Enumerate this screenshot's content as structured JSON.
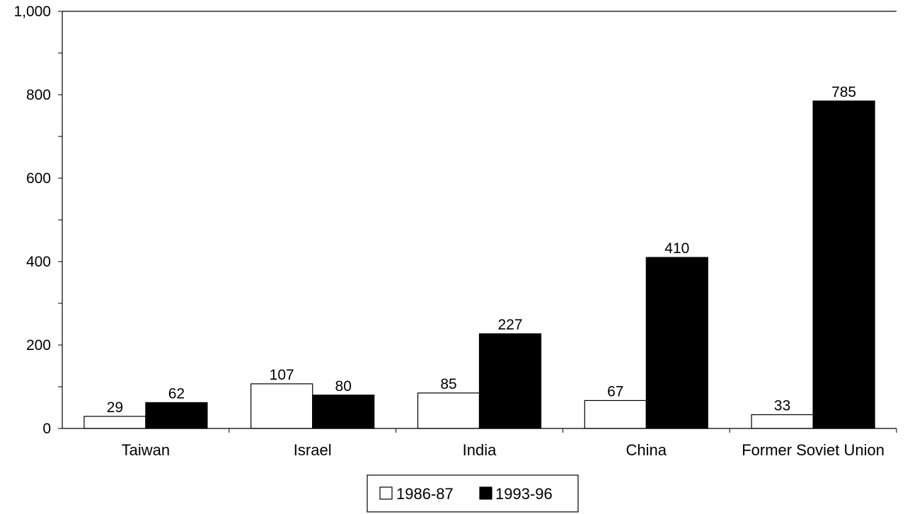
{
  "chart_data": {
    "type": "bar",
    "title": "",
    "xlabel": "",
    "ylabel": "",
    "categories": [
      "Taiwan",
      "Israel",
      "India",
      "China",
      "Former Soviet Union"
    ],
    "series": [
      {
        "name": "1986-87",
        "values": [
          29,
          107,
          85,
          67,
          33
        ],
        "color": "#ffffff"
      },
      {
        "name": "1993-96",
        "values": [
          62,
          80,
          227,
          410,
          785
        ],
        "color": "#000000"
      }
    ],
    "ylim": [
      0,
      1000
    ],
    "yticks": [
      0,
      200,
      400,
      600,
      800,
      1000
    ],
    "ytick_labels": [
      "0",
      "200",
      "400",
      "600",
      "800",
      "1,000"
    ],
    "grid": false,
    "legend_position": "bottom-center"
  }
}
